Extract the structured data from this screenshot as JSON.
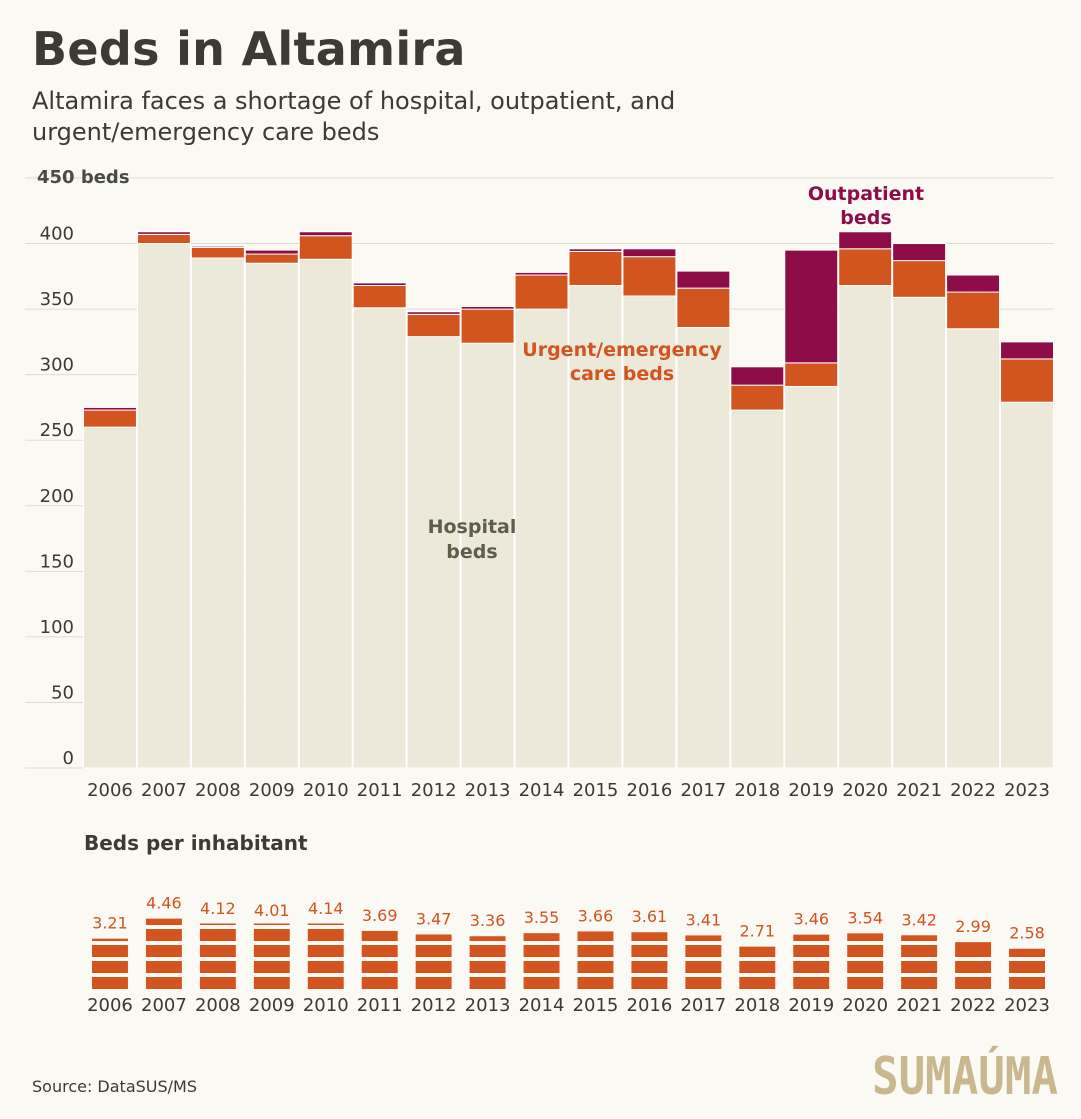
{
  "header": {
    "title": "Beds in Altamira",
    "subtitle": "Altamira faces a shortage of hospital, outpatient, and urgent/emergency care beds"
  },
  "source": "Source: DataSUS/MS",
  "logo": {
    "text": "SUMAÚMA",
    "color": "#c9b88f"
  },
  "colors": {
    "hospital": "#ece8da",
    "urgent": "#d2541f",
    "outpatient": "#8e0c48",
    "hospital_label": "#5c5f4b",
    "grid": "#dddcd3",
    "text": "#3b3a33"
  },
  "chart_data": [
    {
      "type": "bar",
      "stacked": true,
      "categories": [
        "2006",
        "2007",
        "2008",
        "2009",
        "2010",
        "2011",
        "2012",
        "2013",
        "2014",
        "2015",
        "2016",
        "2017",
        "2018",
        "2019",
        "2020",
        "2021",
        "2022",
        "2023"
      ],
      "series": [
        {
          "name": "Hospital beds",
          "label_lines": [
            "Hospital",
            "beds"
          ],
          "values": [
            260,
            400,
            389,
            385,
            388,
            351,
            329,
            324,
            350,
            368,
            360,
            336,
            273,
            291,
            368,
            359,
            335,
            279
          ]
        },
        {
          "name": "Urgent/emergency care beds",
          "label_lines": [
            "Urgent/emergency",
            "care beds"
          ],
          "values": [
            13,
            7,
            8,
            7,
            18,
            17,
            17,
            26,
            26,
            26,
            30,
            30,
            19,
            18,
            28,
            28,
            28,
            33
          ]
        },
        {
          "name": "Outpatient beds",
          "label_lines": [
            "Outpatient",
            "beds"
          ],
          "values": [
            2,
            2,
            1,
            3,
            3,
            2,
            2,
            2,
            2,
            2,
            6,
            13,
            14,
            86,
            13,
            13,
            13,
            13
          ]
        }
      ],
      "ylim": [
        0,
        450
      ],
      "yticks": [
        0,
        50,
        100,
        150,
        200,
        250,
        300,
        350,
        400
      ],
      "top_tick_label": "450 beds",
      "grid": true
    },
    {
      "type": "bar",
      "title": "Beds per inhabitant",
      "categories": [
        "2006",
        "2007",
        "2008",
        "2009",
        "2010",
        "2011",
        "2012",
        "2013",
        "2014",
        "2015",
        "2016",
        "2017",
        "2018",
        "2019",
        "2020",
        "2021",
        "2022",
        "2023"
      ],
      "values": [
        3.21,
        4.46,
        4.12,
        4.01,
        4.14,
        3.69,
        3.47,
        3.36,
        3.55,
        3.66,
        3.61,
        3.41,
        2.71,
        3.46,
        3.54,
        3.42,
        2.99,
        2.58
      ],
      "value_labels": [
        "3.21",
        "4.46",
        "4.12",
        "4.01",
        "4.14",
        "3.69",
        "3.47",
        "3.36",
        "3.55",
        "3.66",
        "3.61",
        "3.41",
        "2.71",
        "3.46",
        "3.54",
        "3.42",
        "2.99",
        "2.58"
      ],
      "segment_size": 1
    }
  ]
}
